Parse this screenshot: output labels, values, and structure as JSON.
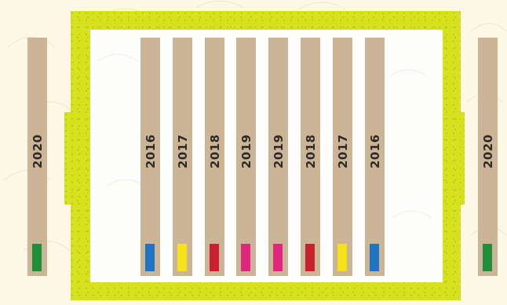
{
  "colors": {
    "page_background": "#fdf8e6",
    "frame": "#d7e21e",
    "frame_inner": "#fdfdfb",
    "strip": "#cbb596",
    "text": "#2e2a26"
  },
  "outside_strips": [
    {
      "year": "2020",
      "swatch_color": "#1f8f3a"
    },
    {
      "year": "2020",
      "swatch_color": "#1f8f3a"
    }
  ],
  "inside_strips": [
    {
      "year": "2016",
      "swatch_color": "#1f74c4"
    },
    {
      "year": "2017",
      "swatch_color": "#f4e31a"
    },
    {
      "year": "2018",
      "swatch_color": "#c8202c"
    },
    {
      "year": "2019",
      "swatch_color": "#e0267c"
    },
    {
      "year": "2019",
      "swatch_color": "#e0267c"
    },
    {
      "year": "2018",
      "swatch_color": "#c8202c"
    },
    {
      "year": "2017",
      "swatch_color": "#f4e31a"
    },
    {
      "year": "2016",
      "swatch_color": "#1f74c4"
    }
  ]
}
